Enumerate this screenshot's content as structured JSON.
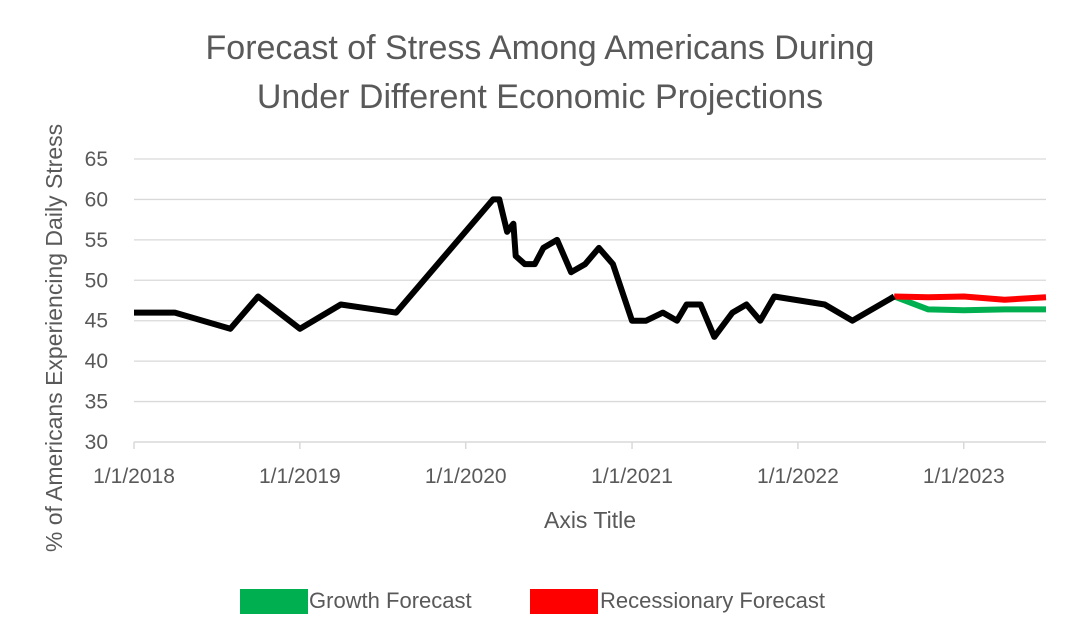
{
  "chart_data": {
    "type": "line",
    "title_lines": [
      "Forecast of Stress Among Americans During",
      "Under Different Economic Projections"
    ],
    "xlabel": "Axis Title",
    "ylabel": "% of Americans Experiencing Daily Stress",
    "ylim": [
      30,
      65
    ],
    "y_ticks": [
      30,
      35,
      40,
      45,
      50,
      55,
      60,
      65
    ],
    "xlim": [
      "2018-01-01",
      "2023-07-01"
    ],
    "x_ticks": [
      "2018-01-01",
      "2019-01-01",
      "2020-01-01",
      "2021-01-01",
      "2022-01-01",
      "2023-01-01"
    ],
    "x_tick_labels": [
      "1/1/2018",
      "1/1/2019",
      "1/1/2020",
      "1/1/2021",
      "1/1/2022",
      "1/1/2023"
    ],
    "grid": true,
    "legend_position": "bottom",
    "series": [
      {
        "color": "#000000",
        "points": [
          [
            "2018-01-01",
            46
          ],
          [
            "2018-04-01",
            46
          ],
          [
            "2018-08-01",
            44
          ],
          [
            "2018-10-01",
            48
          ],
          [
            "2019-01-01",
            44
          ],
          [
            "2019-04-01",
            47
          ],
          [
            "2019-08-01",
            46
          ],
          [
            "2020-03-01",
            60
          ],
          [
            "2020-03-15",
            60
          ],
          [
            "2020-04-01",
            56
          ],
          [
            "2020-04-15",
            57
          ],
          [
            "2020-04-20",
            53
          ],
          [
            "2020-05-10",
            52
          ],
          [
            "2020-06-01",
            52
          ],
          [
            "2020-06-20",
            54
          ],
          [
            "2020-07-20",
            55
          ],
          [
            "2020-08-20",
            51
          ],
          [
            "2020-09-20",
            52
          ],
          [
            "2020-10-20",
            54
          ],
          [
            "2020-11-20",
            52
          ],
          [
            "2021-01-01",
            45
          ],
          [
            "2021-02-01",
            45
          ],
          [
            "2021-03-10",
            46
          ],
          [
            "2021-04-10",
            45
          ],
          [
            "2021-05-01",
            47
          ],
          [
            "2021-06-01",
            47
          ],
          [
            "2021-07-01",
            43
          ],
          [
            "2021-08-10",
            46
          ],
          [
            "2021-09-10",
            47
          ],
          [
            "2021-10-10",
            45
          ],
          [
            "2021-11-10",
            48
          ],
          [
            "2022-03-01",
            47
          ],
          [
            "2022-05-01",
            45
          ],
          [
            "2022-08-01",
            48
          ]
        ]
      },
      {
        "name": "Growth Forecast",
        "color": "#00B050",
        "points": [
          [
            "2022-08-01",
            48
          ],
          [
            "2022-10-15",
            46.4
          ],
          [
            "2023-01-01",
            46.3
          ],
          [
            "2023-04-01",
            46.4
          ],
          [
            "2023-07-01",
            46.4
          ]
        ]
      },
      {
        "name": "Recessionary Forecast",
        "color": "#FF0000",
        "points": [
          [
            "2022-08-01",
            48
          ],
          [
            "2022-10-15",
            47.9
          ],
          [
            "2023-01-01",
            48
          ],
          [
            "2023-04-01",
            47.6
          ],
          [
            "2023-07-01",
            47.9
          ]
        ]
      }
    ]
  }
}
